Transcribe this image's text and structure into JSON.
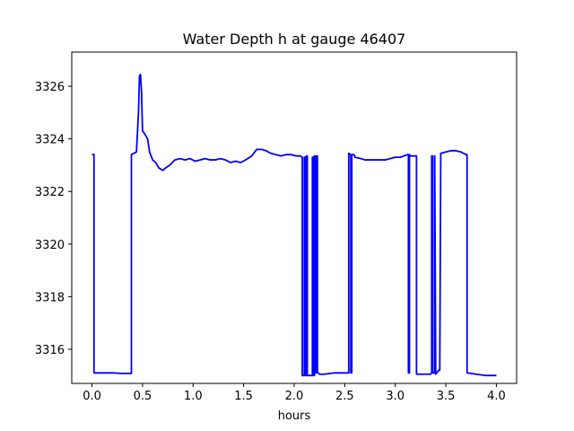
{
  "chart_data": {
    "type": "line",
    "title": "Water Depth h at gauge 46407",
    "xlabel": "hours",
    "ylabel": "",
    "xlim": [
      -0.2,
      4.2
    ],
    "ylim": [
      3314.7,
      3327.3
    ],
    "xticks": [
      0.0,
      0.5,
      1.0,
      1.5,
      2.0,
      2.5,
      3.0,
      3.5,
      4.0
    ],
    "xtick_labels": [
      "0.0",
      "0.5",
      "1.0",
      "1.5",
      "2.0",
      "2.5",
      "3.0",
      "3.5",
      "4.0"
    ],
    "yticks": [
      3316,
      3318,
      3320,
      3322,
      3324,
      3326
    ],
    "ytick_labels": [
      "3316",
      "3318",
      "3320",
      "3322",
      "3324",
      "3326"
    ],
    "grid": false,
    "series_color": "#0000ff",
    "series": [
      {
        "x": [
          0.0,
          0.02,
          0.02,
          0.1,
          0.2,
          0.3,
          0.39,
          0.39,
          0.44,
          0.46,
          0.47,
          0.48,
          0.49,
          0.5,
          0.52,
          0.55,
          0.57,
          0.6,
          0.63,
          0.66,
          0.7,
          0.73,
          0.77,
          0.82,
          0.87,
          0.92,
          0.97,
          1.02,
          1.07,
          1.12,
          1.17,
          1.22,
          1.27,
          1.32,
          1.37,
          1.42,
          1.47,
          1.52,
          1.58,
          1.63,
          1.68,
          1.72,
          1.77,
          1.82,
          1.87,
          1.92,
          1.97,
          2.02,
          2.06,
          2.08,
          2.08,
          2.09,
          2.1,
          2.1,
          2.11,
          2.11,
          2.12,
          2.12,
          2.13,
          2.13,
          2.14,
          2.17,
          2.18,
          2.18,
          2.19,
          2.19,
          2.2,
          2.2,
          2.21,
          2.21,
          2.22,
          2.22,
          2.23,
          2.23,
          2.24,
          2.25,
          2.3,
          2.4,
          2.5,
          2.54,
          2.54,
          2.56,
          2.56,
          2.57,
          2.57,
          2.59,
          2.6,
          2.6,
          2.66,
          2.7,
          2.8,
          2.9,
          3.0,
          3.05,
          3.12,
          3.13,
          3.13,
          3.14,
          3.14,
          3.15,
          3.15,
          3.21,
          3.21,
          3.23,
          3.3,
          3.35,
          3.36,
          3.36,
          3.37,
          3.37,
          3.39,
          3.39,
          3.4,
          3.43,
          3.44,
          3.45,
          3.5,
          3.55,
          3.6,
          3.65,
          3.7,
          3.71,
          3.71,
          3.8,
          3.9,
          4.0
        ],
        "y": [
          3323.4,
          3323.4,
          3315.1,
          3315.1,
          3315.1,
          3315.08,
          3315.08,
          3323.4,
          3323.5,
          3325.0,
          3326.4,
          3326.45,
          3325.8,
          3324.3,
          3324.2,
          3324.0,
          3323.5,
          3323.2,
          3323.1,
          3322.9,
          3322.8,
          3322.9,
          3323.0,
          3323.2,
          3323.25,
          3323.2,
          3323.25,
          3323.15,
          3323.2,
          3323.25,
          3323.2,
          3323.2,
          3323.25,
          3323.2,
          3323.1,
          3323.15,
          3323.1,
          3323.2,
          3323.35,
          3323.6,
          3323.6,
          3323.55,
          3323.45,
          3323.4,
          3323.35,
          3323.4,
          3323.4,
          3323.35,
          3323.35,
          3323.3,
          3315.0,
          3315.0,
          3315.0,
          3323.3,
          3323.3,
          3315.0,
          3315.0,
          3323.35,
          3323.35,
          3315.0,
          3315.0,
          3315.0,
          3315.0,
          3323.3,
          3323.3,
          3315.0,
          3315.0,
          3323.35,
          3323.35,
          3315.1,
          3315.1,
          3323.35,
          3323.35,
          3315.1,
          3315.1,
          3315.05,
          3315.05,
          3315.1,
          3315.1,
          3315.1,
          3323.45,
          3323.4,
          3315.1,
          3315.1,
          3323.4,
          3323.4,
          3323.35,
          3323.3,
          3323.25,
          3323.2,
          3323.2,
          3323.2,
          3323.3,
          3323.3,
          3323.4,
          3323.4,
          3315.1,
          3315.1,
          3323.4,
          3323.35,
          3323.35,
          3323.35,
          3315.05,
          3315.05,
          3315.05,
          3315.05,
          3315.1,
          3323.35,
          3323.35,
          3315.1,
          3315.1,
          3323.35,
          3315.05,
          3315.2,
          3315.2,
          3323.45,
          3323.5,
          3323.55,
          3323.55,
          3323.5,
          3323.4,
          3323.4,
          3315.1,
          3315.05,
          3315.0,
          3315.0
        ]
      }
    ]
  }
}
